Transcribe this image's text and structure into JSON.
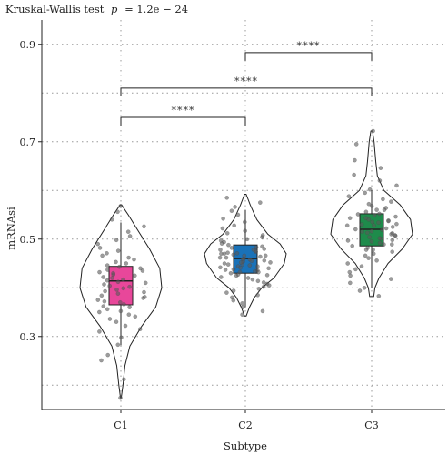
{
  "chart_data": {
    "type": "violin-box",
    "title_prefix": "Kruskal-Wallis test",
    "p_label": "p",
    "p_value": "= 1.2e − 24",
    "xlabel": "Subtype",
    "ylabel": "mRNAsi",
    "ylim": [
      0.15,
      0.95
    ],
    "y_ticks": [
      0.3,
      0.5,
      0.7,
      0.9
    ],
    "grid": true,
    "categories": [
      "C1",
      "C2",
      "C3"
    ],
    "groups": [
      {
        "name": "C1",
        "color": "#E8479A",
        "box": {
          "q1": 0.365,
          "median": 0.414,
          "q3": 0.444,
          "whisker_low": 0.282,
          "whisker_high": 0.534
        },
        "violin": {
          "min": 0.174,
          "max": 0.57,
          "profile": [
            [
              0.174,
              0.01
            ],
            [
              0.2,
              0.05
            ],
            [
              0.24,
              0.1
            ],
            [
              0.28,
              0.22
            ],
            [
              0.32,
              0.5
            ],
            [
              0.36,
              0.85
            ],
            [
              0.4,
              1.0
            ],
            [
              0.44,
              0.95
            ],
            [
              0.48,
              0.7
            ],
            [
              0.52,
              0.4
            ],
            [
              0.55,
              0.18
            ],
            [
              0.57,
              0.02
            ]
          ]
        }
      },
      {
        "name": "C2",
        "color": "#1A72B8",
        "box": {
          "q1": 0.43,
          "median": 0.46,
          "q3": 0.488,
          "whisker_low": 0.36,
          "whisker_high": 0.56
        },
        "violin": {
          "min": 0.342,
          "max": 0.592,
          "profile": [
            [
              0.342,
              0.02
            ],
            [
              0.36,
              0.1
            ],
            [
              0.38,
              0.22
            ],
            [
              0.4,
              0.4
            ],
            [
              0.42,
              0.7
            ],
            [
              0.45,
              0.95
            ],
            [
              0.47,
              1.0
            ],
            [
              0.49,
              0.85
            ],
            [
              0.51,
              0.55
            ],
            [
              0.54,
              0.28
            ],
            [
              0.57,
              0.12
            ],
            [
              0.592,
              0.02
            ]
          ]
        }
      },
      {
        "name": "C3",
        "color": "#1E8B4B",
        "box": {
          "q1": 0.486,
          "median": 0.52,
          "q3": 0.552,
          "whisker_low": 0.4,
          "whisker_high": 0.6
        },
        "violin": {
          "min": 0.382,
          "max": 0.722,
          "profile": [
            [
              0.382,
              0.05
            ],
            [
              0.4,
              0.08
            ],
            [
              0.42,
              0.18
            ],
            [
              0.45,
              0.4
            ],
            [
              0.48,
              0.75
            ],
            [
              0.51,
              1.0
            ],
            [
              0.54,
              0.95
            ],
            [
              0.57,
              0.7
            ],
            [
              0.6,
              0.3
            ],
            [
              0.63,
              0.14
            ],
            [
              0.66,
              0.1
            ],
            [
              0.7,
              0.06
            ],
            [
              0.722,
              0.02
            ]
          ]
        }
      }
    ],
    "points": [
      [
        [
          1,
          0.174
        ],
        [
          1,
          0.212
        ],
        [
          1,
          0.251
        ],
        [
          1,
          0.262
        ],
        [
          1,
          0.283
        ],
        [
          1,
          0.298
        ],
        [
          1,
          0.31
        ],
        [
          1,
          0.315
        ],
        [
          1,
          0.322
        ],
        [
          1,
          0.33
        ],
        [
          1,
          0.336
        ],
        [
          1,
          0.341
        ],
        [
          1,
          0.345
        ],
        [
          1,
          0.35
        ],
        [
          1,
          0.352
        ],
        [
          1,
          0.356
        ],
        [
          1,
          0.36
        ],
        [
          1,
          0.362
        ],
        [
          1,
          0.366
        ],
        [
          1,
          0.37
        ],
        [
          1,
          0.372
        ],
        [
          1,
          0.375
        ],
        [
          1,
          0.379
        ],
        [
          1,
          0.381
        ],
        [
          1,
          0.384
        ],
        [
          1,
          0.388
        ],
        [
          1,
          0.391
        ],
        [
          1,
          0.393
        ],
        [
          1,
          0.396
        ],
        [
          1,
          0.399
        ],
        [
          1,
          0.402
        ],
        [
          1,
          0.404
        ],
        [
          1,
          0.407
        ],
        [
          1,
          0.41
        ],
        [
          1,
          0.412
        ],
        [
          1,
          0.415
        ],
        [
          1,
          0.417
        ],
        [
          1,
          0.42
        ],
        [
          1,
          0.422
        ],
        [
          1,
          0.425
        ],
        [
          1,
          0.427
        ],
        [
          1,
          0.43
        ],
        [
          1,
          0.432
        ],
        [
          1,
          0.435
        ],
        [
          1,
          0.437
        ],
        [
          1,
          0.44
        ],
        [
          1,
          0.443
        ],
        [
          1,
          0.446
        ],
        [
          1,
          0.45
        ],
        [
          1,
          0.453
        ],
        [
          1,
          0.458
        ],
        [
          1,
          0.462
        ],
        [
          1,
          0.466
        ],
        [
          1,
          0.471
        ],
        [
          1,
          0.476
        ],
        [
          1,
          0.482
        ],
        [
          1,
          0.49
        ],
        [
          1,
          0.498
        ],
        [
          1,
          0.506
        ],
        [
          1,
          0.515
        ],
        [
          1,
          0.526
        ],
        [
          1,
          0.54
        ],
        [
          1,
          0.556
        ],
        [
          1,
          0.568
        ]
      ],
      [
        [
          2,
          0.345
        ],
        [
          2,
          0.352
        ],
        [
          2,
          0.36
        ],
        [
          2,
          0.368
        ],
        [
          2,
          0.374
        ],
        [
          2,
          0.38
        ],
        [
          2,
          0.385
        ],
        [
          2,
          0.39
        ],
        [
          2,
          0.394
        ],
        [
          2,
          0.398
        ],
        [
          2,
          0.402
        ],
        [
          2,
          0.405
        ],
        [
          2,
          0.408
        ],
        [
          2,
          0.411
        ],
        [
          2,
          0.414
        ],
        [
          2,
          0.417
        ],
        [
          2,
          0.42
        ],
        [
          2,
          0.422
        ],
        [
          2,
          0.425
        ],
        [
          2,
          0.427
        ],
        [
          2,
          0.43
        ],
        [
          2,
          0.432
        ],
        [
          2,
          0.434
        ],
        [
          2,
          0.436
        ],
        [
          2,
          0.438
        ],
        [
          2,
          0.44
        ],
        [
          2,
          0.442
        ],
        [
          2,
          0.444
        ],
        [
          2,
          0.446
        ],
        [
          2,
          0.448
        ],
        [
          2,
          0.45
        ],
        [
          2,
          0.452
        ],
        [
          2,
          0.454
        ],
        [
          2,
          0.456
        ],
        [
          2,
          0.458
        ],
        [
          2,
          0.46
        ],
        [
          2,
          0.462
        ],
        [
          2,
          0.464
        ],
        [
          2,
          0.466
        ],
        [
          2,
          0.468
        ],
        [
          2,
          0.47
        ],
        [
          2,
          0.472
        ],
        [
          2,
          0.474
        ],
        [
          2,
          0.476
        ],
        [
          2,
          0.478
        ],
        [
          2,
          0.48
        ],
        [
          2,
          0.482
        ],
        [
          2,
          0.485
        ],
        [
          2,
          0.488
        ],
        [
          2,
          0.491
        ],
        [
          2,
          0.494
        ],
        [
          2,
          0.497
        ],
        [
          2,
          0.5
        ],
        [
          2,
          0.504
        ],
        [
          2,
          0.508
        ],
        [
          2,
          0.512
        ],
        [
          2,
          0.517
        ],
        [
          2,
          0.522
        ],
        [
          2,
          0.528
        ],
        [
          2,
          0.535
        ],
        [
          2,
          0.542
        ],
        [
          2,
          0.55
        ],
        [
          2,
          0.558
        ],
        [
          2,
          0.566
        ],
        [
          2,
          0.575
        ],
        [
          2,
          0.585
        ],
        [
          2,
          0.448
        ],
        [
          2,
          0.462
        ],
        [
          2,
          0.455
        ],
        [
          2,
          0.47
        ],
        [
          2,
          0.441
        ],
        [
          2,
          0.437
        ],
        [
          2,
          0.466
        ],
        [
          2,
          0.452
        ],
        [
          2,
          0.478
        ],
        [
          2,
          0.432
        ],
        [
          2,
          0.459
        ],
        [
          2,
          0.444
        ],
        [
          2,
          0.471
        ],
        [
          2,
          0.426
        ],
        [
          2,
          0.483
        ]
      ],
      [
        [
          3,
          0.383
        ],
        [
          3,
          0.394
        ],
        [
          3,
          0.4
        ],
        [
          3,
          0.41
        ],
        [
          3,
          0.418
        ],
        [
          3,
          0.425
        ],
        [
          3,
          0.432
        ],
        [
          3,
          0.438
        ],
        [
          3,
          0.444
        ],
        [
          3,
          0.45
        ],
        [
          3,
          0.456
        ],
        [
          3,
          0.461
        ],
        [
          3,
          0.466
        ],
        [
          3,
          0.47
        ],
        [
          3,
          0.474
        ],
        [
          3,
          0.478
        ],
        [
          3,
          0.482
        ],
        [
          3,
          0.486
        ],
        [
          3,
          0.489
        ],
        [
          3,
          0.492
        ],
        [
          3,
          0.495
        ],
        [
          3,
          0.498
        ],
        [
          3,
          0.501
        ],
        [
          3,
          0.504
        ],
        [
          3,
          0.507
        ],
        [
          3,
          0.51
        ],
        [
          3,
          0.513
        ],
        [
          3,
          0.516
        ],
        [
          3,
          0.519
        ],
        [
          3,
          0.522
        ],
        [
          3,
          0.525
        ],
        [
          3,
          0.528
        ],
        [
          3,
          0.531
        ],
        [
          3,
          0.534
        ],
        [
          3,
          0.537
        ],
        [
          3,
          0.54
        ],
        [
          3,
          0.543
        ],
        [
          3,
          0.546
        ],
        [
          3,
          0.549
        ],
        [
          3,
          0.552
        ],
        [
          3,
          0.556
        ],
        [
          3,
          0.56
        ],
        [
          3,
          0.564
        ],
        [
          3,
          0.568
        ],
        [
          3,
          0.572
        ],
        [
          3,
          0.577
        ],
        [
          3,
          0.582
        ],
        [
          3,
          0.588
        ],
        [
          3,
          0.595
        ],
        [
          3,
          0.602
        ],
        [
          3,
          0.61
        ],
        [
          3,
          0.62
        ],
        [
          3,
          0.632
        ],
        [
          3,
          0.646
        ],
        [
          3,
          0.662
        ],
        [
          3,
          0.695
        ],
        [
          3,
          0.722
        ],
        [
          3,
          0.515
        ],
        [
          3,
          0.528
        ],
        [
          3,
          0.508
        ],
        [
          3,
          0.535
        ],
        [
          3,
          0.497
        ],
        [
          3,
          0.543
        ],
        [
          3,
          0.52
        ],
        [
          3,
          0.502
        ],
        [
          3,
          0.551
        ],
        [
          3,
          0.489
        ],
        [
          3,
          0.53
        ],
        [
          3,
          0.512
        ],
        [
          3,
          0.56
        ],
        [
          3,
          0.478
        ],
        [
          3,
          0.538
        ]
      ]
    ],
    "comparisons": [
      {
        "from": "C1",
        "to": "C2",
        "y": 0.75,
        "label": "****"
      },
      {
        "from": "C1",
        "to": "C3",
        "y": 0.81,
        "label": "****"
      },
      {
        "from": "C2",
        "to": "C3",
        "y": 0.883,
        "label": "****"
      }
    ]
  }
}
